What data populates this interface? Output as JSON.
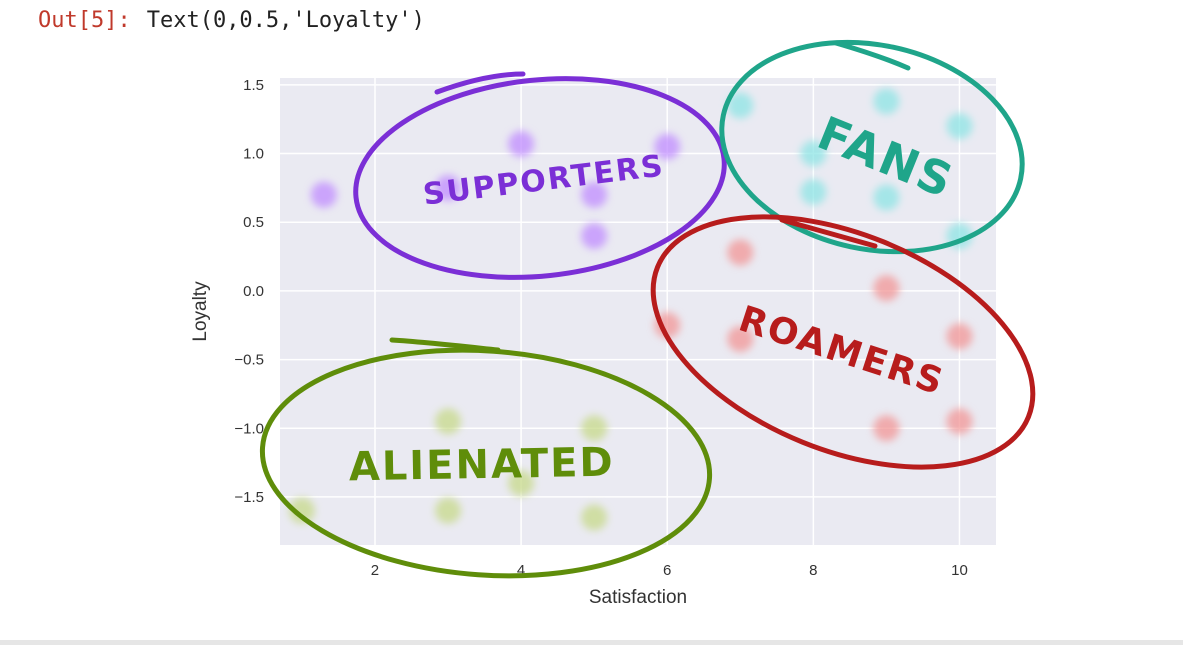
{
  "cell_output": {
    "prompt": "Out[5]:",
    "text": "Text(0,0.5,'Loyalty')"
  },
  "chart_data": {
    "type": "scatter",
    "title": "",
    "xlabel": "Satisfaction",
    "ylabel": "Loyalty",
    "xlim": [
      0.7,
      10.5
    ],
    "ylim": [
      -1.85,
      1.55
    ],
    "xticks": [
      2,
      4,
      6,
      8,
      10
    ],
    "yticks": [
      1.5,
      1.0,
      0.5,
      0.0,
      -0.5,
      -1.0,
      -1.5
    ],
    "ytick_labels": [
      "1.5",
      "1.0",
      "0.5",
      "0.0",
      "−0.5",
      "−1.0",
      "−1.5"
    ],
    "xtick_labels": [
      "2",
      "4",
      "6",
      "8",
      "10"
    ],
    "grid": true,
    "background": "#eaeaf2",
    "points": [
      {
        "x": 1,
        "y": -1.6,
        "cluster": "alienated"
      },
      {
        "x": 3,
        "y": -0.95,
        "cluster": "alienated"
      },
      {
        "x": 3,
        "y": -1.6,
        "cluster": "alienated"
      },
      {
        "x": 4,
        "y": -1.4,
        "cluster": "alienated"
      },
      {
        "x": 5,
        "y": -1.0,
        "cluster": "alienated"
      },
      {
        "x": 5,
        "y": -1.65,
        "cluster": "alienated"
      },
      {
        "x": 1.3,
        "y": 0.7,
        "cluster": "supporters"
      },
      {
        "x": 3,
        "y": 0.75,
        "cluster": "supporters"
      },
      {
        "x": 4,
        "y": 1.07,
        "cluster": "supporters"
      },
      {
        "x": 5,
        "y": 0.7,
        "cluster": "supporters"
      },
      {
        "x": 5,
        "y": 0.4,
        "cluster": "supporters"
      },
      {
        "x": 6,
        "y": 1.05,
        "cluster": "supporters"
      },
      {
        "x": 7,
        "y": 1.35,
        "cluster": "fans"
      },
      {
        "x": 8,
        "y": 0.72,
        "cluster": "fans"
      },
      {
        "x": 8,
        "y": 1.0,
        "cluster": "fans"
      },
      {
        "x": 9,
        "y": 1.38,
        "cluster": "fans"
      },
      {
        "x": 9,
        "y": 0.68,
        "cluster": "fans"
      },
      {
        "x": 10,
        "y": 1.2,
        "cluster": "fans"
      },
      {
        "x": 10,
        "y": 0.4,
        "cluster": "fans"
      },
      {
        "x": 6,
        "y": -0.25,
        "cluster": "roamers"
      },
      {
        "x": 7,
        "y": 0.28,
        "cluster": "roamers"
      },
      {
        "x": 7,
        "y": -0.35,
        "cluster": "roamers"
      },
      {
        "x": 9,
        "y": 0.02,
        "cluster": "roamers"
      },
      {
        "x": 9,
        "y": -1.0,
        "cluster": "roamers"
      },
      {
        "x": 10,
        "y": -0.33,
        "cluster": "roamers"
      },
      {
        "x": 10,
        "y": -0.95,
        "cluster": "roamers"
      }
    ],
    "cluster_colors": {
      "alienated": "#c7d98a",
      "supporters": "#c08cff",
      "fans": "#8de4e4",
      "roamers": "#f29595"
    },
    "annotations": [
      {
        "label": "SUPPORTERS",
        "cluster": "supporters",
        "color": "#7b2fd6"
      },
      {
        "label": "FANS",
        "cluster": "fans",
        "color": "#1fa58a"
      },
      {
        "label": "ROAMERS",
        "cluster": "roamers",
        "color": "#b71c1c"
      },
      {
        "label": "ALIENATED",
        "cluster": "alienated",
        "color": "#5f8d0a"
      }
    ]
  }
}
